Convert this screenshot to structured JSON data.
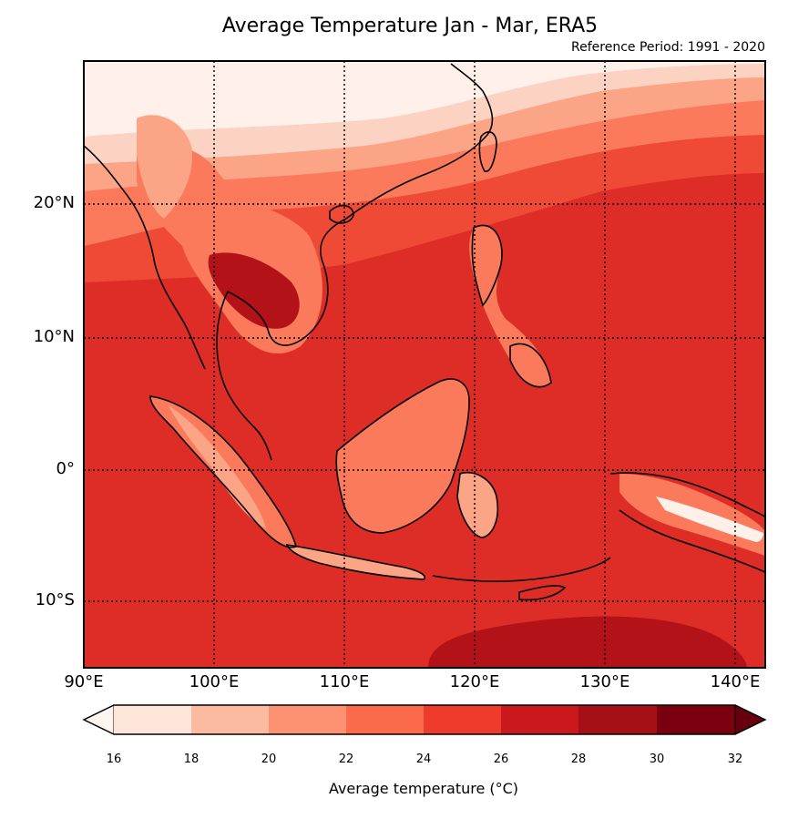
{
  "title": "Average Temperature Jan - Mar, ERA5",
  "subtitle": "Reference Period: 1991 - 2020",
  "lat_labels": [
    "20°N",
    "10°N",
    "0°",
    "10°S"
  ],
  "lon_labels": [
    "90°E",
    "100°E",
    "110°E",
    "120°E",
    "130°E",
    "140°E"
  ],
  "colorbar": {
    "title": "Average temperature (°C)",
    "ticks": [
      "16",
      "18",
      "20",
      "22",
      "24",
      "26",
      "28",
      "30",
      "32"
    ],
    "colors": [
      "#fee5d9",
      "#fcbba1",
      "#fc9272",
      "#fb6a4a",
      "#ef3b2c",
      "#cb181d",
      "#a50f15",
      "#67000d"
    ]
  },
  "map": {
    "extent_lon": [
      90,
      142
    ],
    "extent_lat": [
      -15,
      30
    ],
    "colors": {
      "cold": "#fff0ea",
      "c18": "#fcd2c2",
      "c20": "#fca486",
      "c22": "#fb7a5c",
      "c24": "#ef4a36",
      "c26": "#de2d26",
      "c28": "#b21218",
      "coast": "#000000"
    }
  }
}
